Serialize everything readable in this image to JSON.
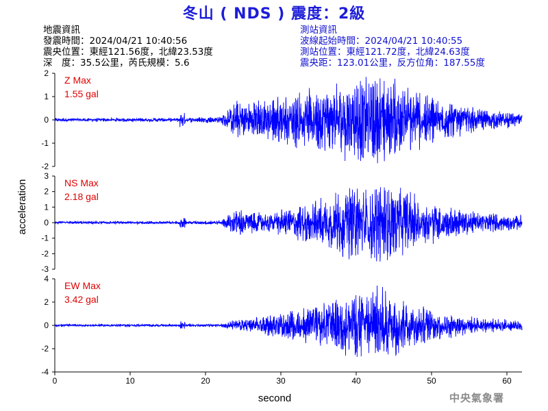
{
  "header": {
    "title": "冬山 ( NDS ) 震度：2級",
    "left_lines": [
      "地震資訊",
      "發震時間：2024/04/21 10:40:56",
      "震央位置：東經121.56度，北緯23.53度",
      "深　度：35.5公里，芮氏規模：5.6"
    ],
    "right_lines": [
      "測站資訊",
      "波線起始時間：2024/04/21 10:40:55",
      "測站位置：東經121.72度，北緯24.63度",
      "震央距：123.01公里，反方位角：187.55度"
    ]
  },
  "footer": {
    "agency": "中央氣象署"
  },
  "colors": {
    "trace": "#0000ff",
    "max_label": "#e00000",
    "title": "#1c1cd8",
    "station_info": "#1010d0",
    "footer": "#8a8a8a"
  },
  "chart_data": [
    {
      "type": "line",
      "component": "Z",
      "max_label": "Z Max",
      "max_value": "1.55 gal",
      "ylim": [
        -2,
        2
      ],
      "yticks": [
        -2,
        -1,
        0,
        1,
        2
      ],
      "peak": 1.55,
      "trough": -1.45,
      "envelope": [
        [
          0,
          0.05
        ],
        [
          17,
          0.06
        ],
        [
          22,
          0.1
        ],
        [
          24,
          0.55
        ],
        [
          28,
          0.6
        ],
        [
          33,
          0.85
        ],
        [
          40,
          1.2
        ],
        [
          42,
          1.45
        ],
        [
          46,
          1.1
        ],
        [
          50,
          0.7
        ],
        [
          56,
          0.35
        ],
        [
          62,
          0.18
        ]
      ]
    },
    {
      "type": "line",
      "component": "NS",
      "max_label": "NS Max",
      "max_value": "2.18 gal",
      "ylim": [
        -3,
        3
      ],
      "yticks": [
        -3,
        -2,
        -1,
        0,
        1,
        2,
        3
      ],
      "peak": 2.1,
      "trough": -2.18,
      "envelope": [
        [
          0,
          0.06
        ],
        [
          17,
          0.07
        ],
        [
          22,
          0.1
        ],
        [
          24,
          0.6
        ],
        [
          28,
          0.4
        ],
        [
          35,
          1.0
        ],
        [
          38,
          1.5
        ],
        [
          42,
          1.8
        ],
        [
          46,
          1.5
        ],
        [
          50,
          0.9
        ],
        [
          56,
          0.45
        ],
        [
          62,
          0.3
        ]
      ]
    },
    {
      "type": "line",
      "component": "EW",
      "max_label": "EW Max",
      "max_value": "3.42 gal",
      "ylim": [
        -4,
        4
      ],
      "yticks": [
        -4,
        -2,
        0,
        2,
        4
      ],
      "peak": 3.42,
      "trough": -2.3,
      "envelope": [
        [
          0,
          0.07
        ],
        [
          17,
          0.08
        ],
        [
          22,
          0.1
        ],
        [
          25,
          0.4
        ],
        [
          30,
          0.7
        ],
        [
          37,
          1.4
        ],
        [
          40,
          1.9
        ],
        [
          43,
          2.2
        ],
        [
          46,
          1.7
        ],
        [
          50,
          0.9
        ],
        [
          56,
          0.45
        ],
        [
          62,
          0.3
        ]
      ]
    }
  ],
  "axes": {
    "xlabel": "second",
    "ylabel": "acceleration",
    "xlim": [
      0,
      62
    ],
    "xticks": [
      0,
      10,
      20,
      30,
      40,
      50,
      60
    ]
  }
}
